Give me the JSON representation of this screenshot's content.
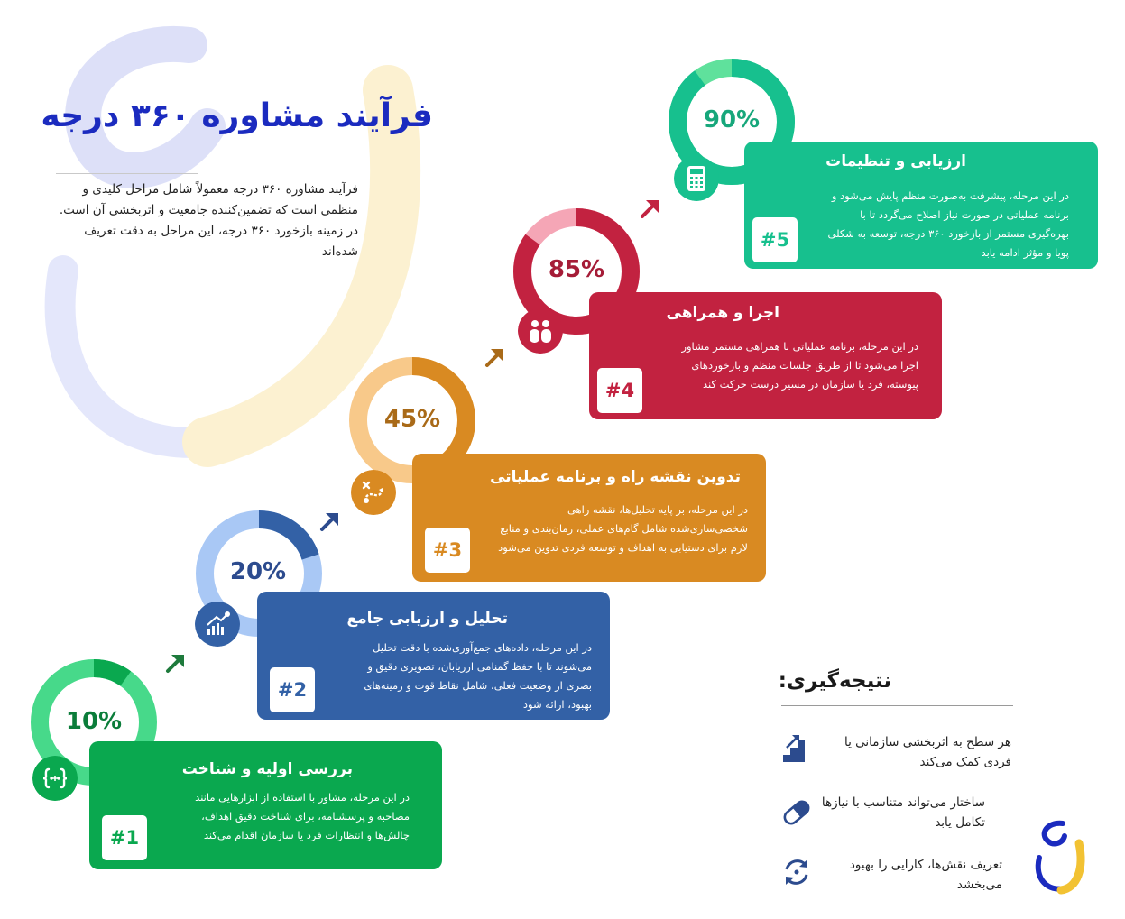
{
  "title": "فرآیند مشاوره ۳۶۰ درجه",
  "intro": "فرآیند مشاوره ۳۶۰ درجه معمولاً شامل مراحل کلیدی و منظمی است که تضمین‌کننده جامعیت و اثربخشی آن است. در زمینه بازخورد ۳۶۰ درجه، این مراحل به دقت تعریف شده‌اند",
  "steps": [
    {
      "number": "#1",
      "percent": "10%",
      "title": "بررسی اولیه و شناخت",
      "body": "در این مرحله، مشاور با استفاده از ابزارهایی مانند مصاحبه و پرسشنامه، برای شناخت دقیق اهداف، چالش‌ها و انتظارات فرد یا سازمان اقدام می‌کند",
      "icon": "code-braces-icon",
      "color": "#0aa84f",
      "ring_color": "#47d98a",
      "ring_fill": 0.1
    },
    {
      "number": "#2",
      "percent": "20%",
      "title": "تحلیل و ارزیابی جامع",
      "body": "در این مرحله، داده‌های جمع‌آوری‌شده با دقت تحلیل می‌شوند تا با حفظ گمنامی ارزیابان، تصویری دقیق و بصری از وضعیت فعلی، شامل نقاط قوت و زمینه‌های بهبود، ارائه شود",
      "icon": "growth-chart-icon",
      "color": "#3361a6",
      "ring_color": "#a9c8f5",
      "ring_fill": 0.2
    },
    {
      "number": "#3",
      "percent": "45%",
      "title": "تدوین نقشه راه و برنامه عملیاتی",
      "body": "در این مرحله، بر پایه تحلیل‌ها، نقشه راهی شخصی‌سازی‌شده شامل گام‌های عملی، زمان‌بندی و منابع لازم برای دستیابی به اهداف و توسعه فردی تدوین می‌شود",
      "icon": "route-icon",
      "color": "#d98a22",
      "ring_color": "#f8c98a",
      "ring_fill": 0.45
    },
    {
      "number": "#4",
      "percent": "85%",
      "title": "اجرا و همراهی",
      "body": "در این مرحله، برنامه عملیاتی با همراهی مستمر مشاور اجرا می‌شود تا از طریق جلسات منظم و بازخوردهای پیوسته، فرد یا سازمان در مسیر درست حرکت کند",
      "icon": "people-icon",
      "color": "#c22240",
      "ring_color": "#f5a6b6",
      "ring_fill": 0.85
    },
    {
      "number": "#5",
      "percent": "90%",
      "title": "ارزیابی و تنظیمات",
      "body": "در این مرحله، پیشرفت به‌صورت منظم پایش می‌شود و برنامه عملیاتی در صورت نیاز اصلاح می‌گردد تا با بهره‌گیری مستمر از بازخورد ۳۶۰ درجه، توسعه به شکلی پویا و مؤثر ادامه یابد",
      "icon": "calculator-icon",
      "color": "#17c08e",
      "ring_color": "#5fe19c",
      "ring_fill": 0.9
    }
  ],
  "conclusion": {
    "title": "نتیجه‌گیری:",
    "items": [
      {
        "text": "هر سطح به اثربخشی سازمانی یا فردی کمک می‌کند",
        "icon": "stairs-up-icon"
      },
      {
        "text": "ساختار می‌تواند متناسب با نیازها تکامل یابد",
        "icon": "capsule-icon"
      },
      {
        "text": "تعریف نقش‌ها، کارایی را بهبود می‌بخشد",
        "icon": "refresh-cycle-icon"
      }
    ]
  },
  "colors": {
    "title": "#1b2bbf",
    "arrows": [
      "#1e7a3c",
      "#2c4b8e",
      "#a96a18",
      "#c22240"
    ]
  }
}
